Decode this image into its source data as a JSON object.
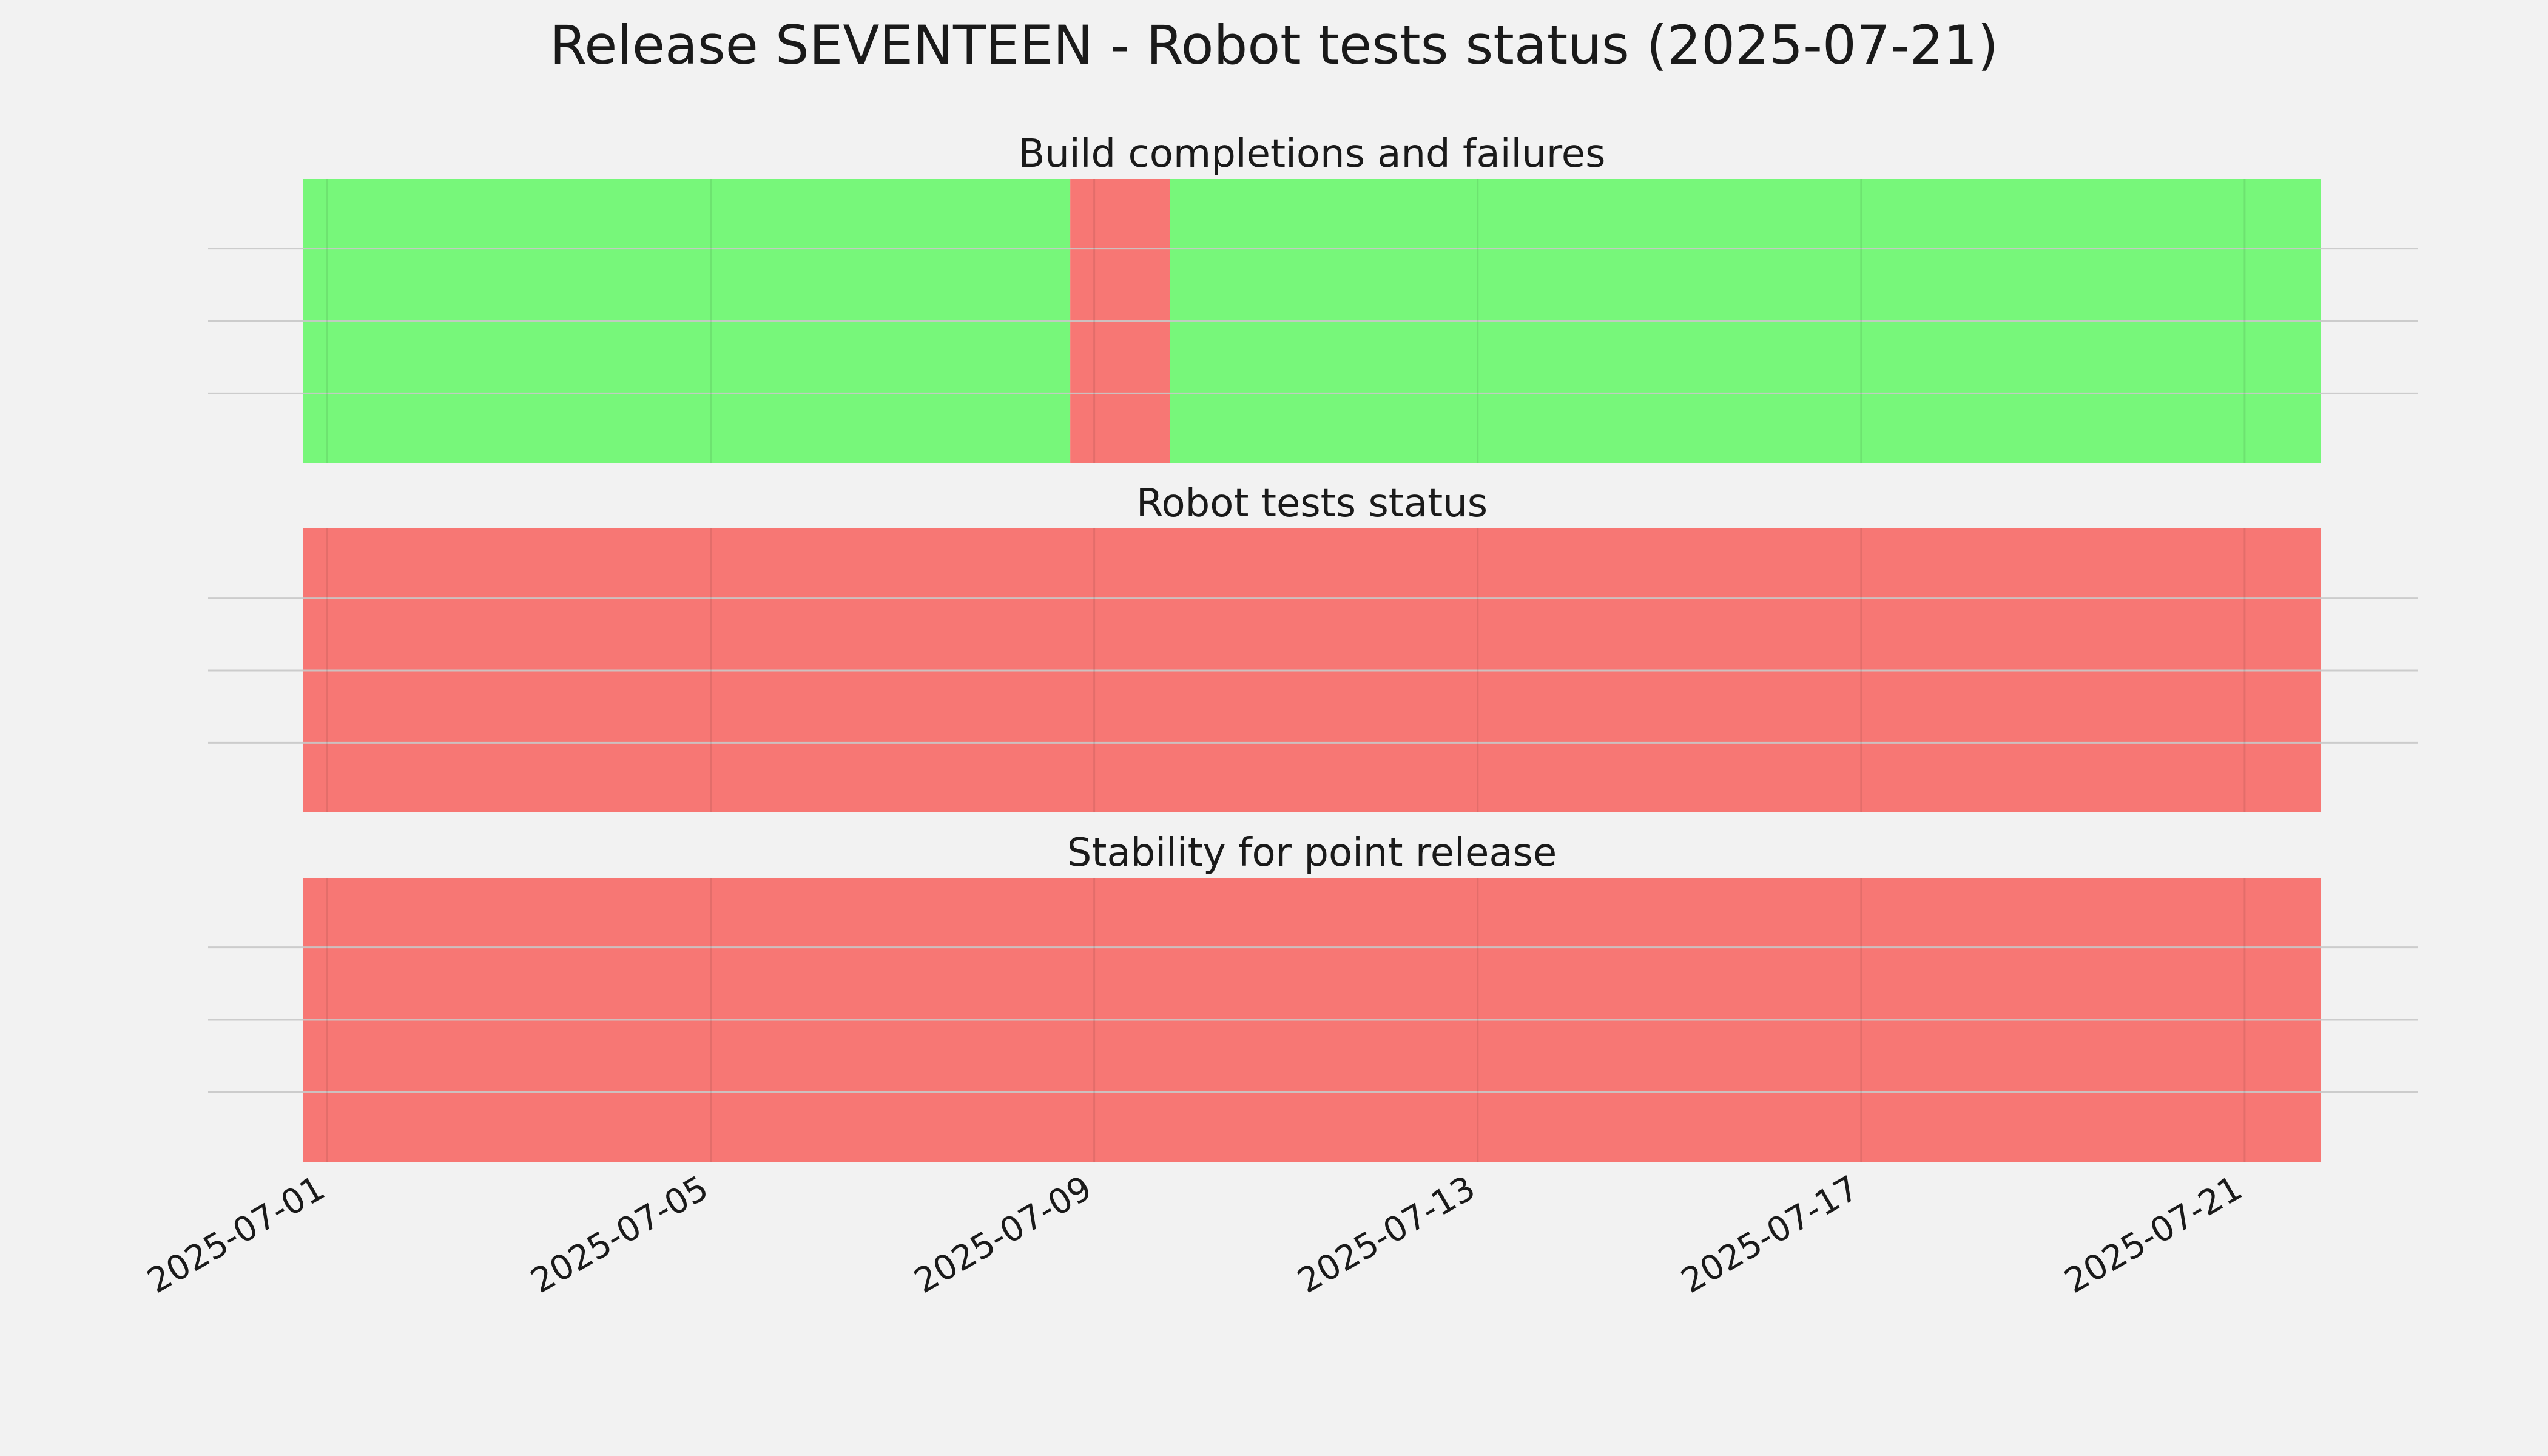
{
  "title": "Release SEVENTEEN - Robot tests status (2025-07-21)",
  "colors": {
    "background": "#f2f2f2",
    "pass": "#77f77a",
    "fail": "#f77774",
    "grid": "#c8c8c8",
    "text": "#1a1a1a"
  },
  "chart_data": [
    {
      "type": "bar",
      "title": "Build completions and failures",
      "xlabel": "",
      "ylabel": "",
      "xlim": [
        "2025-06-30T18:00",
        "2025-07-21T19:00"
      ],
      "grid": true,
      "x_ticks": [
        "2025-07-01",
        "2025-07-05",
        "2025-07-09",
        "2025-07-13",
        "2025-07-17",
        "2025-07-21"
      ],
      "segments": [
        {
          "start": "2025-06-30T18:00",
          "end": "2025-07-08T18:00",
          "status": "pass"
        },
        {
          "start": "2025-07-08T18:00",
          "end": "2025-07-09T19:00",
          "status": "fail"
        },
        {
          "start": "2025-07-09T19:00",
          "end": "2025-07-21T19:00",
          "status": "pass"
        }
      ]
    },
    {
      "type": "bar",
      "title": "Robot tests status",
      "xlabel": "",
      "ylabel": "",
      "xlim": [
        "2025-06-30T18:00",
        "2025-07-21T19:00"
      ],
      "grid": true,
      "x_ticks": [
        "2025-07-01",
        "2025-07-05",
        "2025-07-09",
        "2025-07-13",
        "2025-07-17",
        "2025-07-21"
      ],
      "segments": [
        {
          "start": "2025-06-30T18:00",
          "end": "2025-07-21T19:00",
          "status": "fail"
        }
      ]
    },
    {
      "type": "bar",
      "title": "Stability for point release",
      "xlabel": "",
      "ylabel": "",
      "xlim": [
        "2025-06-30T18:00",
        "2025-07-21T19:00"
      ],
      "grid": true,
      "x_ticks": [
        "2025-07-01",
        "2025-07-05",
        "2025-07-09",
        "2025-07-13",
        "2025-07-17",
        "2025-07-21"
      ],
      "segments": [
        {
          "start": "2025-06-30T18:00",
          "end": "2025-07-21T19:00",
          "status": "fail"
        }
      ]
    }
  ]
}
